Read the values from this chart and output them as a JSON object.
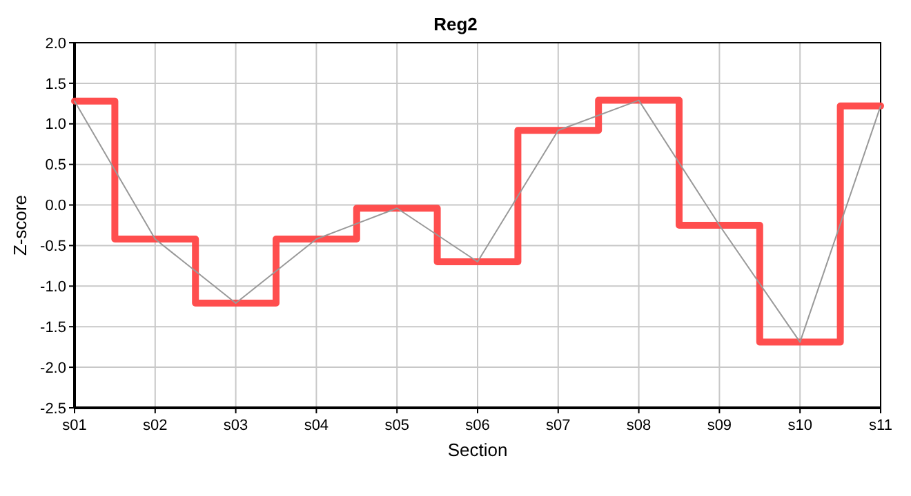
{
  "chart_data": {
    "type": "step",
    "title": "Reg2",
    "xlabel": "Section",
    "ylabel": "Z-score",
    "categories": [
      "s01",
      "s02",
      "s03",
      "s04",
      "s05",
      "s06",
      "s07",
      "s08",
      "s09",
      "s10",
      "s11"
    ],
    "series": [
      {
        "color": "#ff4444",
        "values": [
          1.28,
          -0.42,
          -1.21,
          -0.42,
          -0.04,
          -0.7,
          0.92,
          1.29,
          -0.25,
          -1.69,
          1.22
        ]
      },
      {
        "type": "line",
        "color": "#999999",
        "values": [
          1.28,
          -0.42,
          -1.21,
          -0.42,
          -0.04,
          -0.7,
          0.92,
          1.29,
          -0.25,
          -1.69,
          1.22
        ]
      }
    ],
    "ylim": [
      -2.5,
      2
    ],
    "yticks": [
      {
        "value": -2.5,
        "label": "-2.5"
      },
      {
        "value": -2,
        "label": "-2.0"
      },
      {
        "value": -1.5,
        "label": "-1.5"
      },
      {
        "value": -1,
        "label": "-1.0"
      },
      {
        "value": -0.5,
        "label": "-0.5"
      },
      {
        "value": 0,
        "label": "0.0"
      },
      {
        "value": 0.5,
        "label": "0.5"
      },
      {
        "value": 1,
        "label": "1.0"
      },
      {
        "value": 1.5,
        "label": "1.5"
      },
      {
        "value": 2,
        "label": "2.0"
      }
    ],
    "grid": true,
    "marker": "none",
    "line_style": "solid"
  }
}
